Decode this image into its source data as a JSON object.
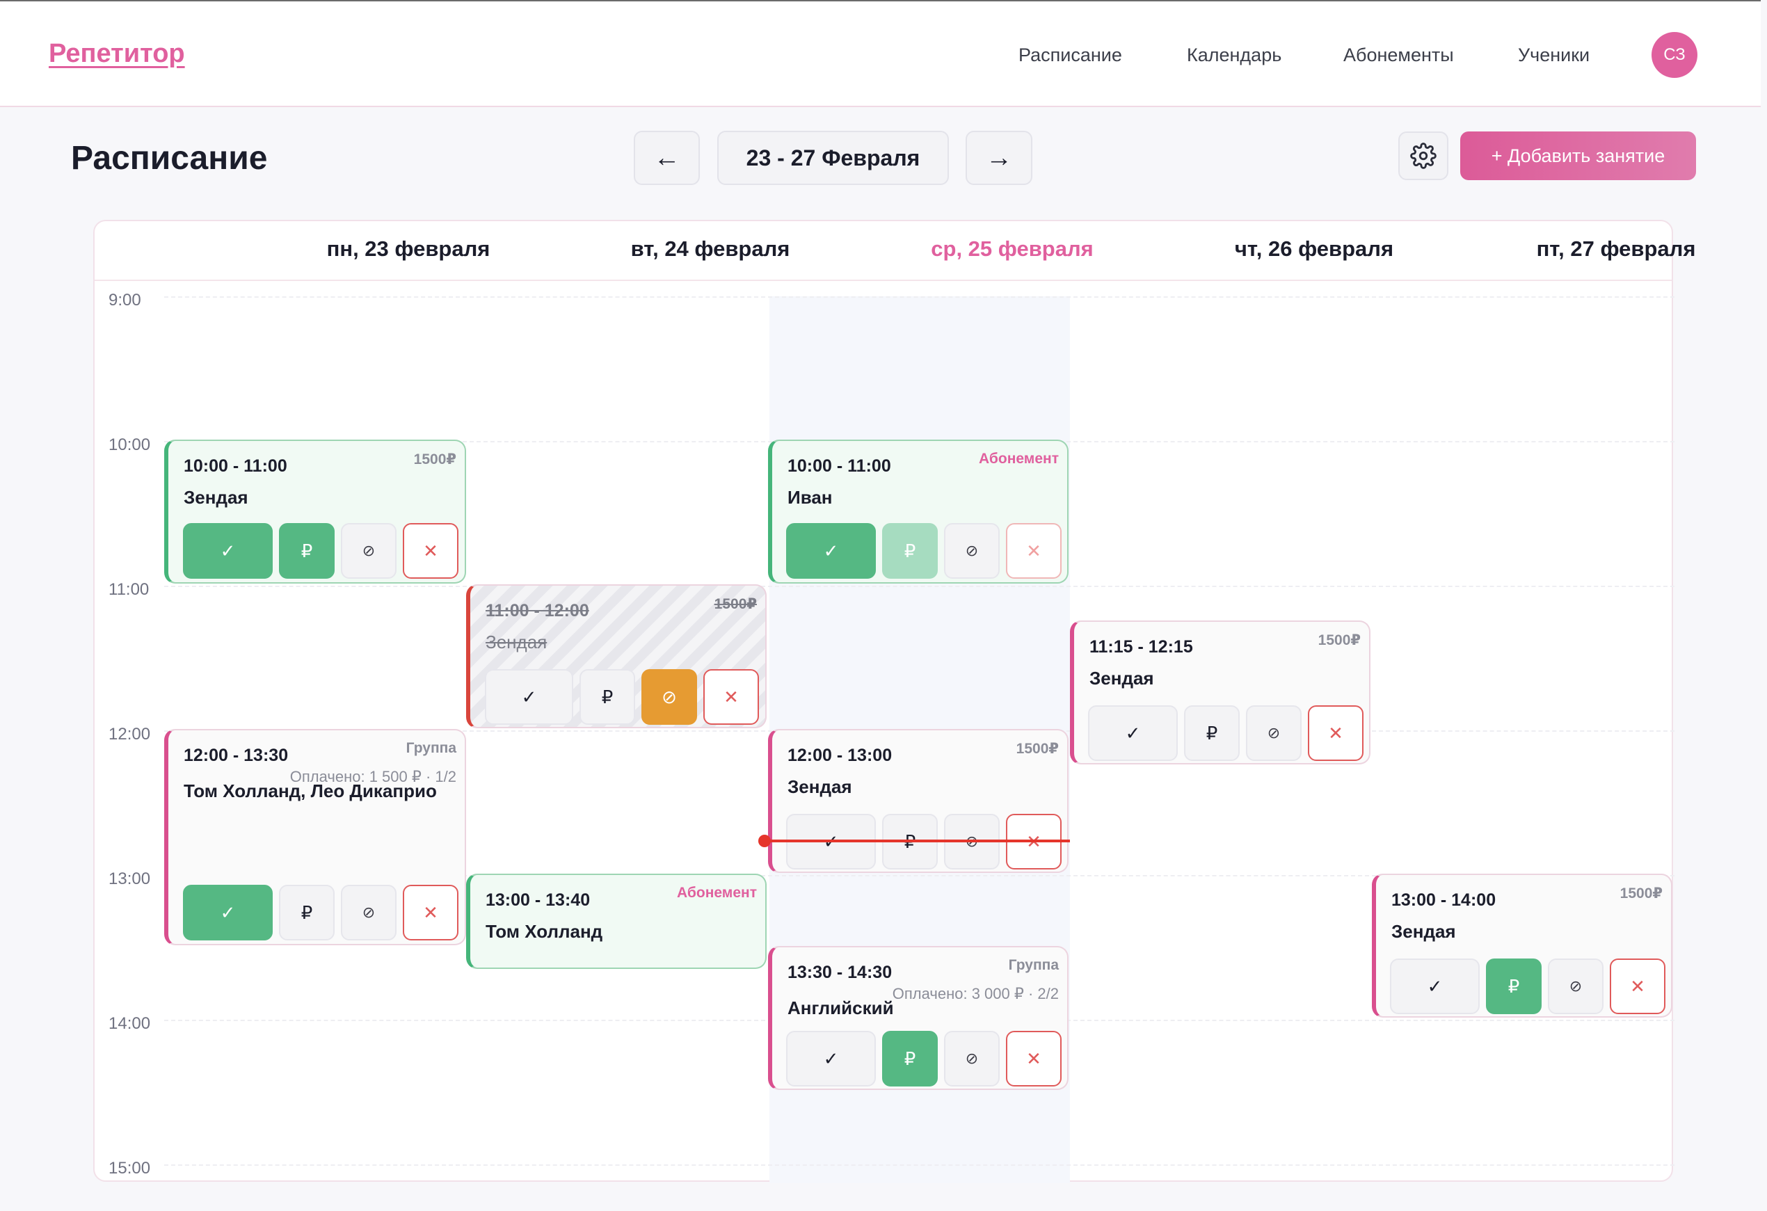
{
  "header": {
    "logo": "Репетитор",
    "nav": [
      "Расписание",
      "Календарь",
      "Абонементы",
      "Ученики"
    ],
    "avatar_initials": "СЗ"
  },
  "toolbar": {
    "title": "Расписание",
    "prev_label": "←",
    "week_label": "23 - 27 Февраля",
    "next_label": "→",
    "settings_icon": "gear-icon",
    "add_label": "+ Добавить занятие"
  },
  "days": [
    "пн, 23 февраля",
    "вт, 24 февраля",
    "ср, 25 февраля",
    "чт, 26 февраля",
    "пт, 27 февраля"
  ],
  "today_index": 2,
  "hours": [
    "9:00",
    "10:00",
    "11:00",
    "12:00",
    "13:00",
    "14:00",
    "15:00"
  ],
  "actions": {
    "done": "✓",
    "pay": "₽",
    "skip": "⊘",
    "delete": "✕"
  },
  "lessons": {
    "mon_1": {
      "time": "10:00 - 11:00",
      "name": "Зендая",
      "tag": "1500₽"
    },
    "mon_2": {
      "time": "12:00 - 13:30",
      "name": "Том Холланд, Лео Дикаприо",
      "tag": "Группа",
      "paid": "Оплачено: 1 500 ₽ · 1/2"
    },
    "tue_1": {
      "time": "11:00 - 12:00",
      "name": "Зендая",
      "tag": "1500₽"
    },
    "tue_2": {
      "time": "13:00 - 13:40",
      "name": "Том Холланд",
      "tag": "Абонемент"
    },
    "wed_1": {
      "time": "10:00 - 11:00",
      "name": "Иван",
      "tag": "Абонемент"
    },
    "wed_2": {
      "time": "12:00 - 13:00",
      "name": "Зендая",
      "tag": "1500₽"
    },
    "wed_3": {
      "time": "13:30 - 14:30",
      "name": "Английский",
      "tag": "Группа",
      "paid": "Оплачено: 3 000 ₽ · 2/2"
    },
    "thu_1": {
      "time": "11:15 - 12:15",
      "name": "Зендая",
      "tag": "1500₽"
    },
    "fri_1": {
      "time": "13:00 - 14:00",
      "name": "Зендая",
      "tag": "1500₽"
    }
  },
  "colors": {
    "accent": "#e0609e",
    "success": "#55b883",
    "warning": "#e69b32",
    "danger": "#e05a5a",
    "now_line": "#e5352b"
  }
}
